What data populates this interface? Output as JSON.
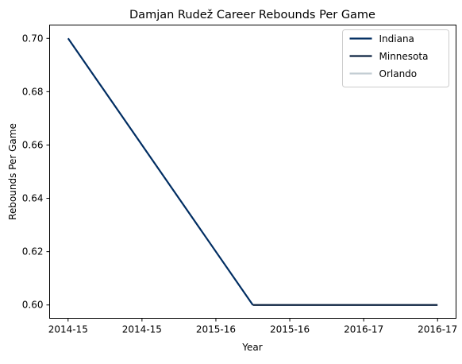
{
  "chart_data": {
    "type": "line",
    "title": "Damjan Rudež Career Rebounds Per Game",
    "xlabel": "Year",
    "ylabel": "Rebounds Per Game",
    "x_tick_labels": [
      "2014-15",
      "2014-15",
      "2015-16",
      "2015-16",
      "2016-17",
      "2016-17"
    ],
    "y_ticks": [
      0.6,
      0.62,
      0.64,
      0.66,
      0.68,
      0.7
    ],
    "ylim": [
      0.595,
      0.705
    ],
    "grid": false,
    "legend_position": "top-right",
    "series": [
      {
        "name": "Indiana",
        "color": "#002D62",
        "x": [
          0,
          2.5
        ],
        "values": [
          0.7,
          0.6
        ]
      },
      {
        "name": "Minnesota",
        "color": "#0C2340",
        "x": [
          2.5,
          5
        ],
        "values": [
          0.6,
          0.6
        ]
      },
      {
        "name": "Orlando",
        "color": "#C4CED4",
        "x": [],
        "values": []
      }
    ]
  }
}
